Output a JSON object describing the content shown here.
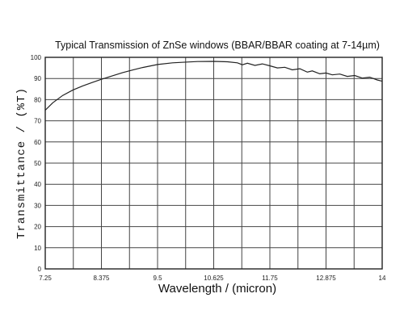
{
  "chart_data": {
    "type": "line",
    "title": "Typical Transmission of ZnSe windows (BBAR/BBAR coating at 7-14µm)",
    "xlabel": "Wavelength / (micron)",
    "ylabel": "Transmittance / (%T)",
    "xlim": [
      7.25,
      14
    ],
    "ylim": [
      0,
      100
    ],
    "x_ticks": [
      "7.25",
      "8.375",
      "9.5",
      "10.625",
      "11.75",
      "12.875",
      "14"
    ],
    "y_ticks": [
      "0",
      "10",
      "20",
      "30",
      "40",
      "50",
      "60",
      "70",
      "80",
      "90",
      "100"
    ],
    "grid": true,
    "series": [
      {
        "color": "#222222",
        "points": [
          [
            7.25,
            75
          ],
          [
            7.4,
            78.5
          ],
          [
            7.6,
            82
          ],
          [
            7.8,
            84.5
          ],
          [
            8.0,
            86.5
          ],
          [
            8.2,
            88.2
          ],
          [
            8.375,
            89.6
          ],
          [
            8.6,
            91.3
          ],
          [
            8.8,
            92.8
          ],
          [
            9.0,
            94.0
          ],
          [
            9.2,
            95.2
          ],
          [
            9.5,
            96.6
          ],
          [
            9.8,
            97.4
          ],
          [
            10.1,
            97.8
          ],
          [
            10.3,
            98.0
          ],
          [
            10.625,
            98.1
          ],
          [
            10.9,
            97.9
          ],
          [
            11.1,
            97.4
          ],
          [
            11.2,
            96.5
          ],
          [
            11.3,
            97.2
          ],
          [
            11.45,
            96.2
          ],
          [
            11.6,
            96.9
          ],
          [
            11.75,
            96.0
          ],
          [
            11.9,
            95.0
          ],
          [
            12.05,
            95.3
          ],
          [
            12.2,
            94.1
          ],
          [
            12.35,
            94.6
          ],
          [
            12.5,
            93.0
          ],
          [
            12.6,
            93.6
          ],
          [
            12.75,
            92.2
          ],
          [
            12.875,
            92.6
          ],
          [
            13.0,
            91.7
          ],
          [
            13.15,
            92.1
          ],
          [
            13.3,
            91.0
          ],
          [
            13.45,
            91.4
          ],
          [
            13.6,
            90.2
          ],
          [
            13.75,
            90.6
          ],
          [
            13.9,
            89.3
          ],
          [
            14.0,
            88.7
          ]
        ]
      }
    ]
  }
}
